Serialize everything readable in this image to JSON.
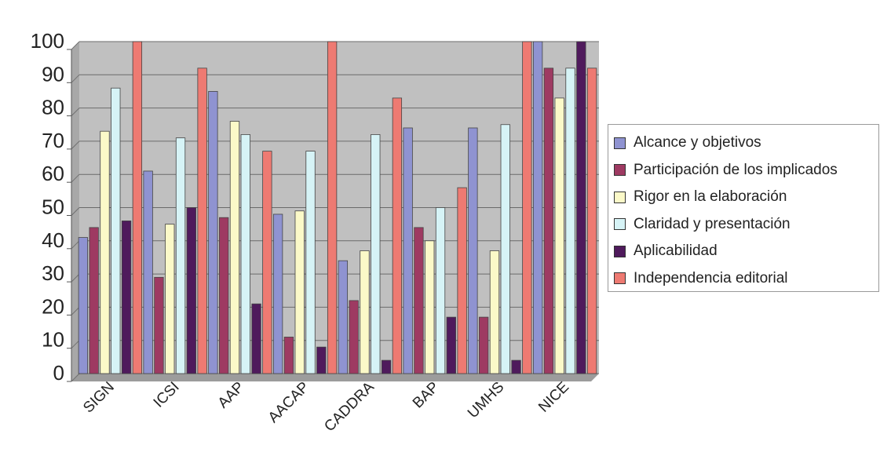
{
  "chart_data": {
    "type": "bar",
    "title": "",
    "xlabel": "",
    "ylabel": "",
    "ylim": [
      0,
      100
    ],
    "yticks": [
      0,
      10,
      20,
      30,
      40,
      50,
      60,
      70,
      80,
      90,
      100
    ],
    "grid": "horizontal",
    "legend_position": "right",
    "plot_background": "#c0c0c0",
    "categories": [
      "SIGN",
      "ICSI",
      "AAP",
      "AACAP",
      "CADDRA",
      "BAP",
      "UMHS",
      "NICE"
    ],
    "series": [
      {
        "name": "Alcance y objetivos",
        "color": "#8f93d1",
        "values": [
          41,
          61,
          85,
          48,
          34,
          74,
          74,
          100
        ]
      },
      {
        "name": "Participación de los implicados",
        "color": "#9e3a62",
        "values": [
          44,
          29,
          47,
          11,
          22,
          44,
          17,
          92
        ]
      },
      {
        "name": "Rigor en la elaboración",
        "color": "#fbf9c8",
        "values": [
          73,
          45,
          76,
          49,
          37,
          40,
          37,
          83
        ]
      },
      {
        "name": "Claridad y presentación",
        "color": "#d6f3f6",
        "values": [
          86,
          71,
          72,
          67,
          72,
          50,
          75,
          92
        ]
      },
      {
        "name": "Aplicabilidad",
        "color": "#4f1a5c",
        "values": [
          46,
          50,
          21,
          8,
          4,
          17,
          4,
          100
        ]
      },
      {
        "name": "Independencia editorial",
        "color": "#ee7a72",
        "values": [
          100,
          92,
          67,
          100,
          83,
          56,
          100,
          92
        ]
      }
    ]
  }
}
